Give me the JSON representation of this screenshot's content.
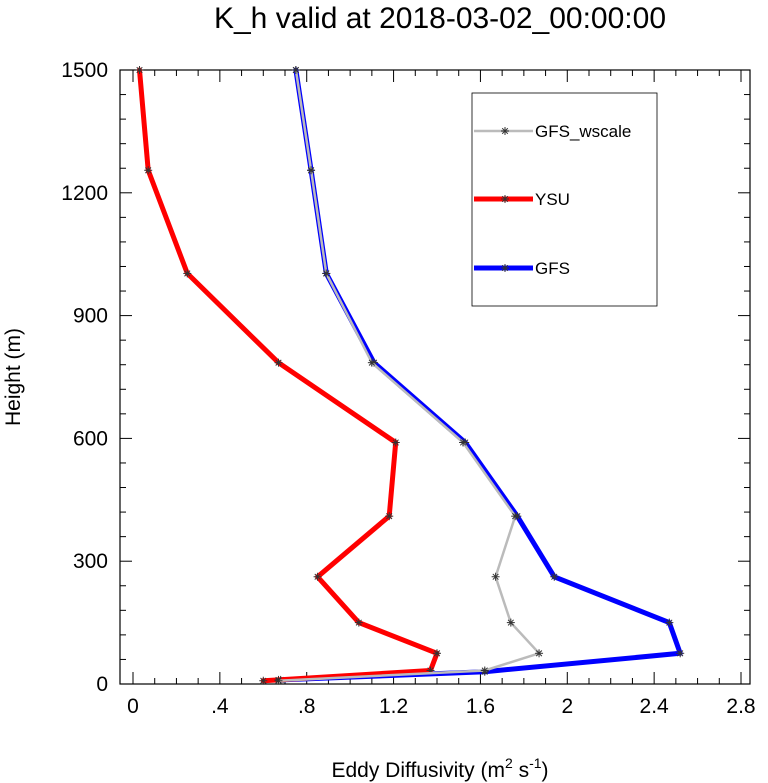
{
  "chart_data": {
    "type": "line",
    "title": "K_h valid at 2018-03-02_00:00:00",
    "xlabel_main": "Eddy Diffusivity (m",
    "xlabel_sup1": "2",
    "xlabel_mid": " s",
    "xlabel_sup2": "-1",
    "xlabel_end": ")",
    "ylabel": "Height (m)",
    "xlim": [
      0,
      2.8
    ],
    "ylim": [
      0,
      1500
    ],
    "x_ticks": [
      0,
      0.4,
      0.8,
      1.2,
      1.6,
      2.0,
      2.4,
      2.8
    ],
    "x_tick_labels": [
      "0",
      ".4",
      ".8",
      "1.2",
      "1.6",
      "2",
      "2.4",
      "2.8"
    ],
    "y_ticks": [
      0,
      300,
      600,
      900,
      1200,
      1500
    ],
    "y_tick_labels": [
      "0",
      "300",
      "600",
      "900",
      "1200",
      "1500"
    ],
    "legend_position": "top-right",
    "series": [
      {
        "name": "GFS",
        "color": "#0000ff",
        "points": [
          [
            0.68,
            10
          ],
          [
            1.62,
            30
          ],
          [
            2.52,
            75
          ],
          [
            2.47,
            150
          ],
          [
            1.94,
            262
          ],
          [
            1.77,
            410
          ],
          [
            1.53,
            590
          ],
          [
            1.11,
            785
          ],
          [
            0.89,
            1003
          ],
          [
            0.82,
            1255
          ],
          [
            0.75,
            1500
          ]
        ]
      },
      {
        "name": "YSU",
        "color": "#ff0000",
        "points": [
          [
            0.6,
            8
          ],
          [
            0.67,
            10
          ],
          [
            1.37,
            33
          ],
          [
            1.4,
            75
          ],
          [
            1.04,
            150
          ],
          [
            0.85,
            262
          ],
          [
            1.18,
            410
          ],
          [
            1.21,
            590
          ],
          [
            0.67,
            785
          ],
          [
            0.25,
            1003
          ],
          [
            0.07,
            1255
          ],
          [
            0.03,
            1500
          ]
        ]
      },
      {
        "name": "GFS_wscale",
        "color": "#bbbbbb",
        "points": [
          [
            0.67,
            8
          ],
          [
            1.62,
            33
          ],
          [
            1.87,
            75
          ],
          [
            1.74,
            150
          ],
          [
            1.67,
            262
          ],
          [
            1.76,
            410
          ],
          [
            1.52,
            590
          ],
          [
            1.1,
            785
          ],
          [
            0.89,
            1003
          ],
          [
            0.82,
            1255
          ],
          [
            0.75,
            1500
          ]
        ]
      }
    ]
  }
}
